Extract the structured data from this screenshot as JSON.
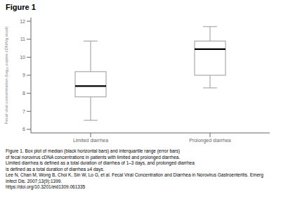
{
  "chart_data": {
    "type": "box",
    "title": "Figure 1",
    "ylabel": "Fecal viral concentration (log₁₀ copies cDNA/g stool)",
    "categories": [
      "Limited diarrhea",
      "Prolonged diarrhea"
    ],
    "whisker_low": [
      6.5,
      8.3
    ],
    "q1": [
      7.8,
      9.0
    ],
    "median": [
      8.4,
      10.45
    ],
    "q3": [
      9.2,
      10.9
    ],
    "whisker_high": [
      10.9,
      11.7
    ],
    "color": "black",
    "ylim": [
      5.8,
      12.2
    ],
    "yticks": [
      6,
      7,
      8,
      9,
      10,
      11,
      12
    ],
    "grid": false,
    "annotations": [
      "Figure 1. Box plot of median (black horizontal bars) and interquartile range (error bars)",
      "of fecal norovirus cDNA concentrations in patients with limited and prolonged diarrhea.",
      "Limited diarrhea is defined as a total duration of diarrhea of 1–3 days, and prolonged diarrhea",
      "is defined as a total duration of diarrhea ≥4 days.",
      "Lee N, Chan M, Wong B, Choi K, Sin W, Lo G, et al. Fecal Viral Concentration and Diarrhea in Norovirus Gastroenteritis. Emerg Infect Dis. 2007;13(9):1399.",
      "https://doi.org/10.3201/eid1309.061335"
    ]
  }
}
